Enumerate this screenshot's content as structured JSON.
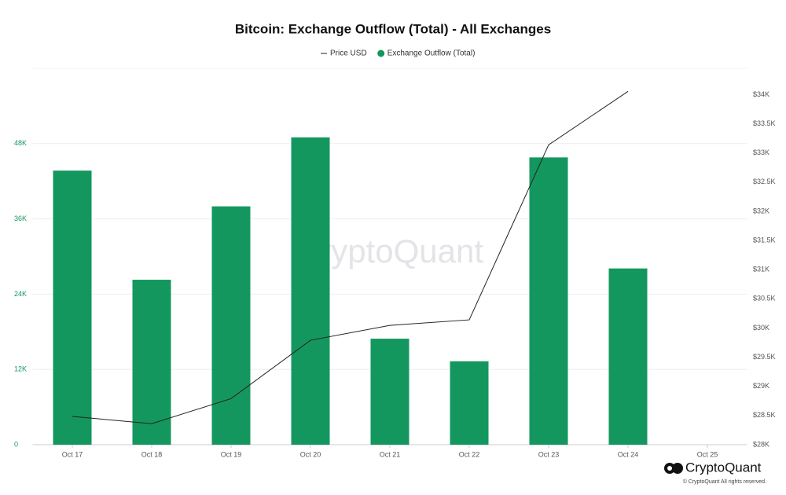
{
  "chart_data": {
    "type": "bar",
    "title": "Bitcoin: Exchange Outflow (Total) - All Exchanges",
    "categories": [
      "Oct 17",
      "Oct 18",
      "Oct 19",
      "Oct 20",
      "Oct 21",
      "Oct 22",
      "Oct 23",
      "Oct 24",
      "Oct 25"
    ],
    "series": [
      {
        "name": "Price USD",
        "type": "line",
        "color": "#222222",
        "axis": "y2",
        "values": [
          28485,
          28360,
          28790,
          29790,
          30045,
          30140,
          33140,
          34055,
          null
        ]
      },
      {
        "name": "Exchange Outflow (Total)",
        "type": "bar",
        "color": "#14975e",
        "values": [
          43700,
          26300,
          38000,
          49000,
          16900,
          13300,
          45800,
          28100,
          null
        ]
      }
    ],
    "ylim": [
      0,
      60000
    ],
    "yticks": [
      0,
      {
        "value": 12000,
        "label": "12K"
      },
      {
        "value": 24000,
        "label": "24K"
      },
      {
        "value": 36000,
        "label": "36K"
      },
      {
        "value": 48000,
        "label": "48K"
      }
    ],
    "y2lim": [
      28000,
      34450
    ],
    "y2ticks": [
      {
        "value": 28000,
        "label": "$28K"
      },
      {
        "value": 28500,
        "label": "$28.5K"
      },
      {
        "value": 29000,
        "label": "$29K"
      },
      {
        "value": 29500,
        "label": "$29.5K"
      },
      {
        "value": 30000,
        "label": "$30K"
      },
      {
        "value": 30500,
        "label": "$30.5K"
      },
      {
        "value": 31000,
        "label": "$31K"
      },
      {
        "value": 31500,
        "label": "$31.5K"
      },
      {
        "value": 32000,
        "label": "$32K"
      },
      {
        "value": 32500,
        "label": "$32.5K"
      },
      {
        "value": 33000,
        "label": "$33K"
      },
      {
        "value": 33500,
        "label": "$33.5K"
      },
      {
        "value": 34000,
        "label": "$34K"
      }
    ],
    "grid": true,
    "legend": "top",
    "watermark": "CryptoQuant"
  },
  "branding": {
    "logo": "CryptoQuant",
    "copyright": "© CryptoQuant All rights reserved."
  }
}
